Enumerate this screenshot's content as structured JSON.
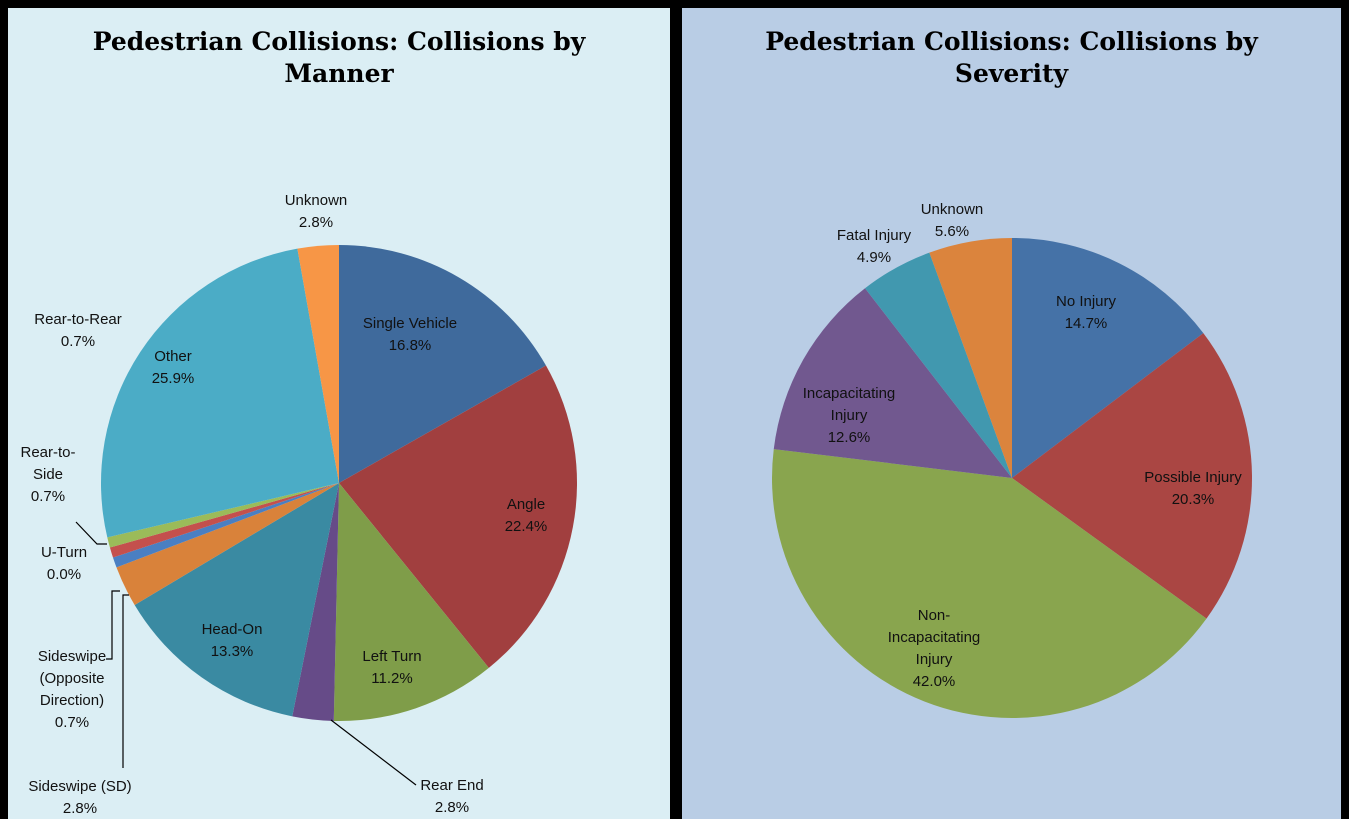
{
  "chart_data": [
    {
      "type": "pie",
      "title": "Pedestrian Collisions: Collisions by Manner",
      "title_lines": [
        "Pedestrian Collisions: Collisions by",
        "Manner"
      ],
      "slices": [
        {
          "label": "Single Vehicle",
          "value": 16.8,
          "display": "16.8%",
          "color": "#3f6a9c"
        },
        {
          "label": "Angle",
          "value": 22.4,
          "display": "22.4%",
          "color": "#a13f3f"
        },
        {
          "label": "Left Turn",
          "value": 11.2,
          "display": "11.2%",
          "color": "#7f9d49"
        },
        {
          "label": "Rear End",
          "value": 2.8,
          "display": "2.8%",
          "color": "#664b88"
        },
        {
          "label": "Head-On",
          "value": 13.3,
          "display": "13.3%",
          "color": "#3a8aa2"
        },
        {
          "label": "Sideswipe (SD)",
          "value": 2.8,
          "display": "2.8%",
          "color": "#d9823a"
        },
        {
          "label": "Sideswipe (Opposite Direction)",
          "value": 0.7,
          "display": "0.7%",
          "color": "#4a7fc2"
        },
        {
          "label": "U-Turn",
          "value": 0.0,
          "display": "0.0%",
          "color": "#4a7fc2"
        },
        {
          "label": "Rear-to-Side",
          "value": 0.7,
          "display": "0.7%",
          "color": "#c4504d"
        },
        {
          "label": "Rear-to-Rear",
          "value": 0.7,
          "display": "0.7%",
          "color": "#9bbb59"
        },
        {
          "label": "Other",
          "value": 25.9,
          "display": "25.9%",
          "color": "#4bacc6"
        },
        {
          "label": "Unknown",
          "value": 2.8,
          "display": "2.8%",
          "color": "#f79646"
        }
      ]
    },
    {
      "type": "pie",
      "title": "Pedestrian Collisions: Collisions by Severity",
      "title_lines": [
        "Pedestrian Collisions: Collisions by",
        "Severity"
      ],
      "slices": [
        {
          "label": "No Injury",
          "value": 14.7,
          "display": "14.7%",
          "color": "#4572a7"
        },
        {
          "label": "Possible Injury",
          "value": 20.3,
          "display": "20.3%",
          "color": "#aa4643"
        },
        {
          "label": "Non-Incapacitating Injury",
          "value": 42.0,
          "display": "42.0%",
          "color": "#89a54e"
        },
        {
          "label": "Incapacitating Injury",
          "value": 12.6,
          "display": "12.6%",
          "color": "#71588f"
        },
        {
          "label": "Fatal Injury",
          "value": 4.9,
          "display": "4.9%",
          "color": "#4198af"
        },
        {
          "label": "Unknown",
          "value": 5.6,
          "display": "5.6%",
          "color": "#db843d"
        }
      ]
    }
  ]
}
